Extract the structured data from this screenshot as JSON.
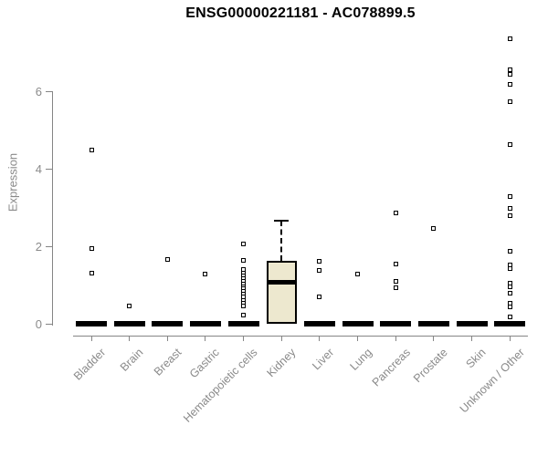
{
  "chart_data": {
    "type": "boxplot",
    "title": "ENSG00000221181 - AC078899.5",
    "ylabel": "Expression",
    "yticks": [
      0,
      2,
      4,
      6
    ],
    "ylim": [
      0,
      7.5
    ],
    "grid": false,
    "legend": false,
    "categories": [
      "Bladder",
      "Brain",
      "Breast",
      "Gastric",
      "Hematopoietic cells",
      "Kidney",
      "Liver",
      "Lung",
      "Pancreas",
      "Prostate",
      "Skin",
      "Unknown / Other"
    ],
    "boxes": [
      {
        "q1": 0,
        "median": 0,
        "q3": 0,
        "whisker_low": 0,
        "whisker_high": 0
      },
      {
        "q1": 0,
        "median": 0,
        "q3": 0,
        "whisker_low": 0,
        "whisker_high": 0
      },
      {
        "q1": 0,
        "median": 0,
        "q3": 0,
        "whisker_low": 0,
        "whisker_high": 0
      },
      {
        "q1": 0,
        "median": 0,
        "q3": 0,
        "whisker_low": 0,
        "whisker_high": 0
      },
      {
        "q1": 0,
        "median": 0,
        "q3": 0,
        "whisker_low": 0,
        "whisker_high": 0
      },
      {
        "q1": 0,
        "median": 1.06,
        "q3": 1.63,
        "whisker_low": 0,
        "whisker_high": 2.67
      },
      {
        "q1": 0,
        "median": 0,
        "q3": 0,
        "whisker_low": 0,
        "whisker_high": 0
      },
      {
        "q1": 0,
        "median": 0,
        "q3": 0,
        "whisker_low": 0,
        "whisker_high": 0
      },
      {
        "q1": 0,
        "median": 0,
        "q3": 0,
        "whisker_low": 0,
        "whisker_high": 0
      },
      {
        "q1": 0,
        "median": 0,
        "q3": 0,
        "whisker_low": 0,
        "whisker_high": 0
      },
      {
        "q1": 0,
        "median": 0,
        "q3": 0,
        "whisker_low": 0,
        "whisker_high": 0
      },
      {
        "q1": 0,
        "median": 0,
        "q3": 0,
        "whisker_low": 0,
        "whisker_high": 0
      }
    ],
    "points": [
      [
        4.49,
        1.94,
        1.31
      ],
      [
        0.45
      ],
      [
        1.66
      ],
      [
        1.29
      ],
      [
        2.06,
        1.64,
        1.4,
        1.31,
        1.24,
        1.17,
        1.1,
        1.03,
        0.96,
        0.9,
        0.83,
        0.76,
        0.69,
        0.61,
        0.54,
        0.47,
        0.22
      ],
      [],
      [
        1.62,
        1.38,
        0.7
      ],
      [
        1.29
      ],
      [
        2.86,
        1.55,
        1.1,
        0.94
      ],
      [
        2.45
      ],
      [],
      [
        7.35,
        6.55,
        6.43,
        6.17,
        5.72,
        4.62,
        3.28,
        2.97,
        2.78,
        1.88,
        1.51,
        1.42,
        1.05,
        0.95,
        0.8,
        0.52,
        0.44,
        0.18
      ]
    ],
    "colors": {
      "box_fill": "#ede8cf",
      "box_border": "#000000",
      "median": "#000000",
      "point": "#000000",
      "axis": "#858585",
      "axis_text": "#8a8a8a",
      "title_text": "#000000",
      "background": "#ffffff"
    }
  }
}
